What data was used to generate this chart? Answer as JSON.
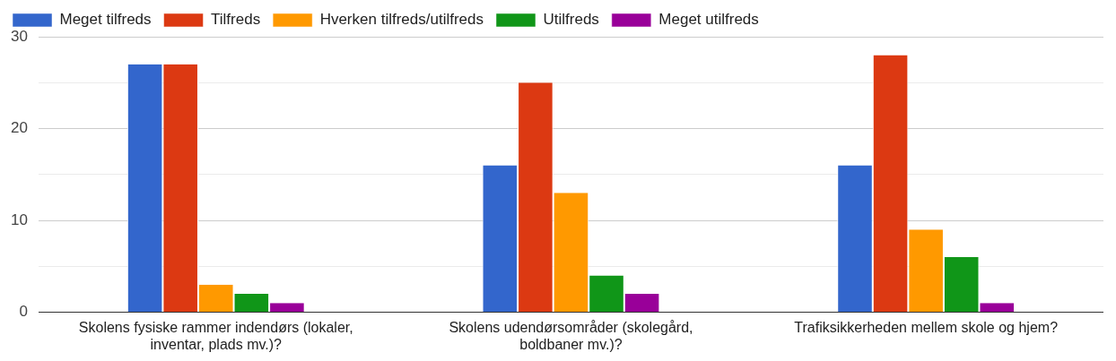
{
  "chart_data": {
    "type": "bar",
    "categories": [
      "Skolens fysiske rammer indendørs (lokaler, inventar, plads mv.)?",
      "Skolens udendørsområder (skolegård, boldbaner mv.)?",
      "Trafiksikkerheden mellem skole og hjem?"
    ],
    "series": [
      {
        "name": "Meget tilfreds",
        "color": "#3366cc",
        "values": [
          27,
          16,
          16
        ]
      },
      {
        "name": "Tilfreds",
        "color": "#dc3912",
        "values": [
          27,
          25,
          28
        ]
      },
      {
        "name": "Hverken tilfreds/utilfreds",
        "color": "#ff9900",
        "values": [
          3,
          13,
          9
        ]
      },
      {
        "name": "Utilfreds",
        "color": "#109618",
        "values": [
          2,
          4,
          6
        ]
      },
      {
        "name": "Meget utilfreds",
        "color": "#990099",
        "values": [
          1,
          2,
          1
        ]
      }
    ],
    "ylim": [
      0,
      30
    ],
    "yticks": [
      0,
      {
        "value": 5,
        "label": null
      },
      10,
      {
        "value": 15,
        "label": null
      },
      20,
      {
        "value": 25,
        "label": null
      },
      30
    ],
    "grid": "y",
    "legend": "top"
  }
}
